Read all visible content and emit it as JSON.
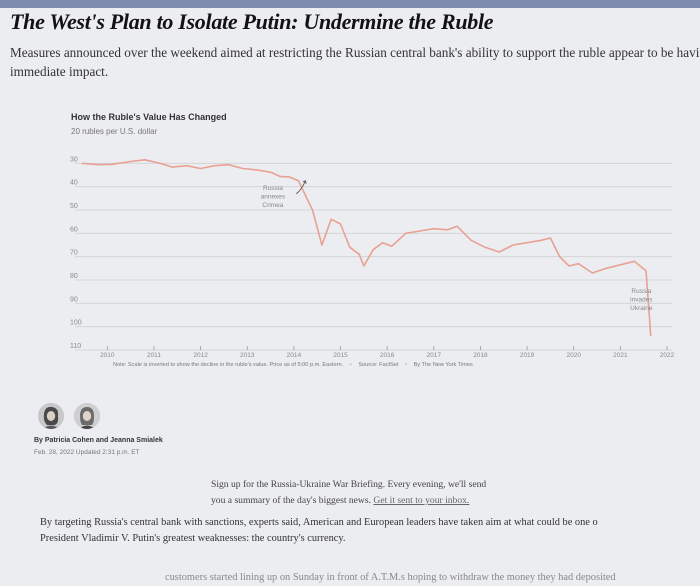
{
  "article": {
    "headline": "The West's Plan to Isolate Putin: Undermine the Ruble",
    "subhead_line1": "Measures announced over the weekend aimed at restricting the Russian central bank's ability to support the ruble appear to be having",
    "subhead_line2": "immediate impact."
  },
  "chart_data": {
    "type": "line",
    "title": "How the Ruble's Value Has Changed",
    "ylabel": "20 rubles per U.S. dollar",
    "y_inverted": true,
    "ylim": [
      110,
      20
    ],
    "yticks": [
      "30",
      "40",
      "50",
      "60",
      "70",
      "80",
      "90",
      "100",
      "110"
    ],
    "xticks": [
      "2010",
      "2011",
      "2012",
      "2013",
      "2014",
      "2015",
      "2016",
      "2017",
      "2018",
      "2019",
      "2020",
      "2021",
      "2022"
    ],
    "line_color": "#e8a193",
    "series": [
      {
        "x": [
          2009.95,
          2010.3,
          2010.6,
          2011.0,
          2011.3,
          2011.6,
          2011.9,
          2012.2,
          2012.5,
          2012.8,
          2013.1,
          2013.4,
          2013.7,
          2014.0,
          2014.2,
          2014.4,
          2014.6,
          2014.9,
          2015.1,
          2015.3,
          2015.5,
          2015.7,
          2015.9,
          2016.0,
          2016.2,
          2016.4,
          2016.6,
          2016.9,
          2017.2,
          2017.5,
          2017.8,
          2018.0,
          2018.3,
          2018.6,
          2018.9,
          2019.2,
          2019.5,
          2019.8,
          2020.0,
          2020.2,
          2020.4,
          2020.6,
          2020.9,
          2021.2,
          2021.5,
          2021.8,
          2022.05,
          2022.12,
          2022.15
        ],
        "y": [
          30.0,
          30.6,
          30.4,
          29.2,
          28.5,
          29.8,
          31.6,
          31.0,
          32.2,
          31.0,
          30.6,
          32.2,
          32.8,
          33.8,
          35.6,
          35.8,
          37.5,
          50.0,
          65.0,
          54.0,
          56.0,
          66.0,
          69.0,
          74.0,
          67.0,
          64.0,
          65.5,
          60.0,
          59.0,
          58.0,
          58.5,
          57.0,
          63.0,
          66.0,
          68.0,
          65.0,
          64.0,
          63.0,
          62.0,
          70.0,
          74.0,
          73.0,
          77.0,
          75.0,
          73.5,
          72.0,
          76.0,
          95.0,
          104.0
        ]
      }
    ],
    "annotations": [
      {
        "lines": [
          "Russia",
          "annexes",
          "Crimea"
        ]
      },
      {
        "lines": [
          "Russia",
          "invades",
          "Ukraine"
        ]
      }
    ],
    "note": "Note: Scale is inverted to show the decline in the ruble's value. Price as of 5:00 p.m. Eastern.",
    "source": "Source: FactSet",
    "credit": "By The New York Times"
  },
  "byline": {
    "authors": "By Patricia Cohen and Jeanna Smialek",
    "dateline": "Feb. 28, 2022   Updated 2:31 p.m. ET"
  },
  "signup": {
    "line1": "Sign up for the Russia-Ukraine War Briefing. Every evening, we'll send",
    "line2_text": "you a summary of the day's biggest news.",
    "line2_link": "Get it sent to your inbox."
  },
  "body": {
    "line1": "By targeting Russia's central bank with sanctions, experts said, American and European leaders have taken aim at what could be one o",
    "line2": "President Vladimir V. Putin's greatest weaknesses: the country's currency.",
    "line3_cut": "customers started lining up on Sunday in front of A.T.M.s hoping to withdraw the money they had deposited"
  }
}
